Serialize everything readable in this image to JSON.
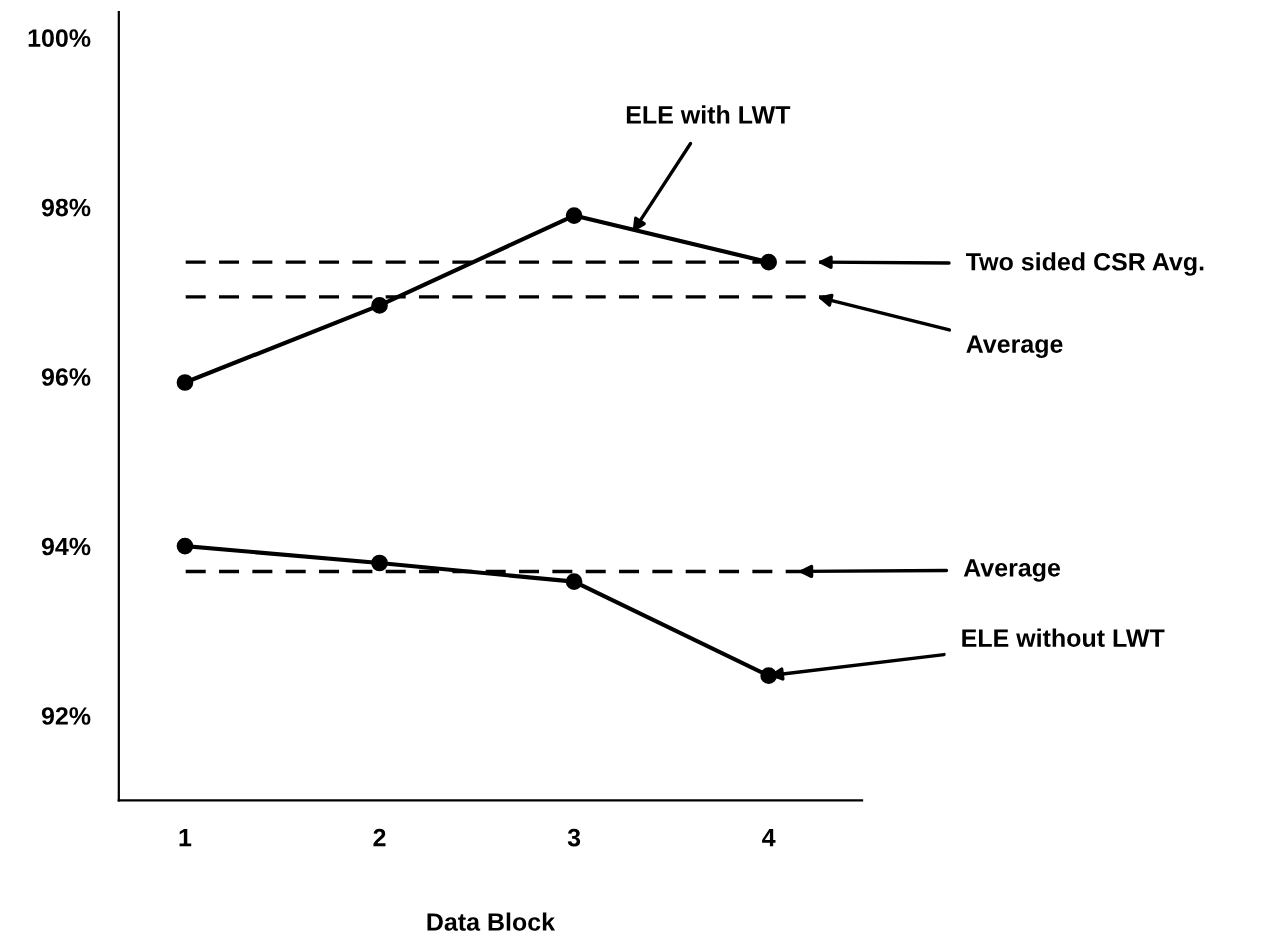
{
  "chart_data": {
    "type": "line",
    "xlabel": "Data Block",
    "x": [
      1,
      2,
      3,
      4
    ],
    "series": [
      {
        "color": "#000000",
        "values": [
          95.93,
          96.84,
          97.9,
          97.35
        ]
      },
      {
        "color": "#000000",
        "values": [
          94.0,
          93.8,
          93.58,
          92.47
        ]
      }
    ],
    "xlim": [
      0.66,
      4.48
    ],
    "xticks": [
      1,
      2,
      3,
      4
    ],
    "ylim": [
      91,
      100.3
    ],
    "yticks": [
      {
        "value": 92,
        "label": "92%"
      },
      {
        "value": 94,
        "label": "94%"
      },
      {
        "value": 96,
        "label": "96%"
      },
      {
        "value": 98,
        "label": "98%"
      },
      {
        "value": 100,
        "label": "100%"
      }
    ],
    "ref_lines": [
      {
        "axis": "y",
        "value": 97.35,
        "line_style": "dashed",
        "color": "#000000"
      },
      {
        "axis": "y",
        "value": 96.94,
        "line_style": "dashed",
        "color": "#000000"
      },
      {
        "axis": "y",
        "value": 93.7,
        "line_style": "dashed",
        "color": "#000000"
      }
    ],
    "annotations": [
      {
        "text": "ELE with LWT",
        "x": 3.3,
        "y": 97.7
      },
      {
        "text": "Two sided CSR Avg.",
        "x": 4.25,
        "y": 97.35
      },
      {
        "text": "Average",
        "x": 4.25,
        "y": 96.94
      },
      {
        "text": "Average",
        "x": 4.15,
        "y": 93.7
      },
      {
        "text": "ELE without LWT",
        "x": 4,
        "y": 92.47
      }
    ],
    "grid": false,
    "legend": false,
    "marker": "circle",
    "line_style": "solid"
  }
}
